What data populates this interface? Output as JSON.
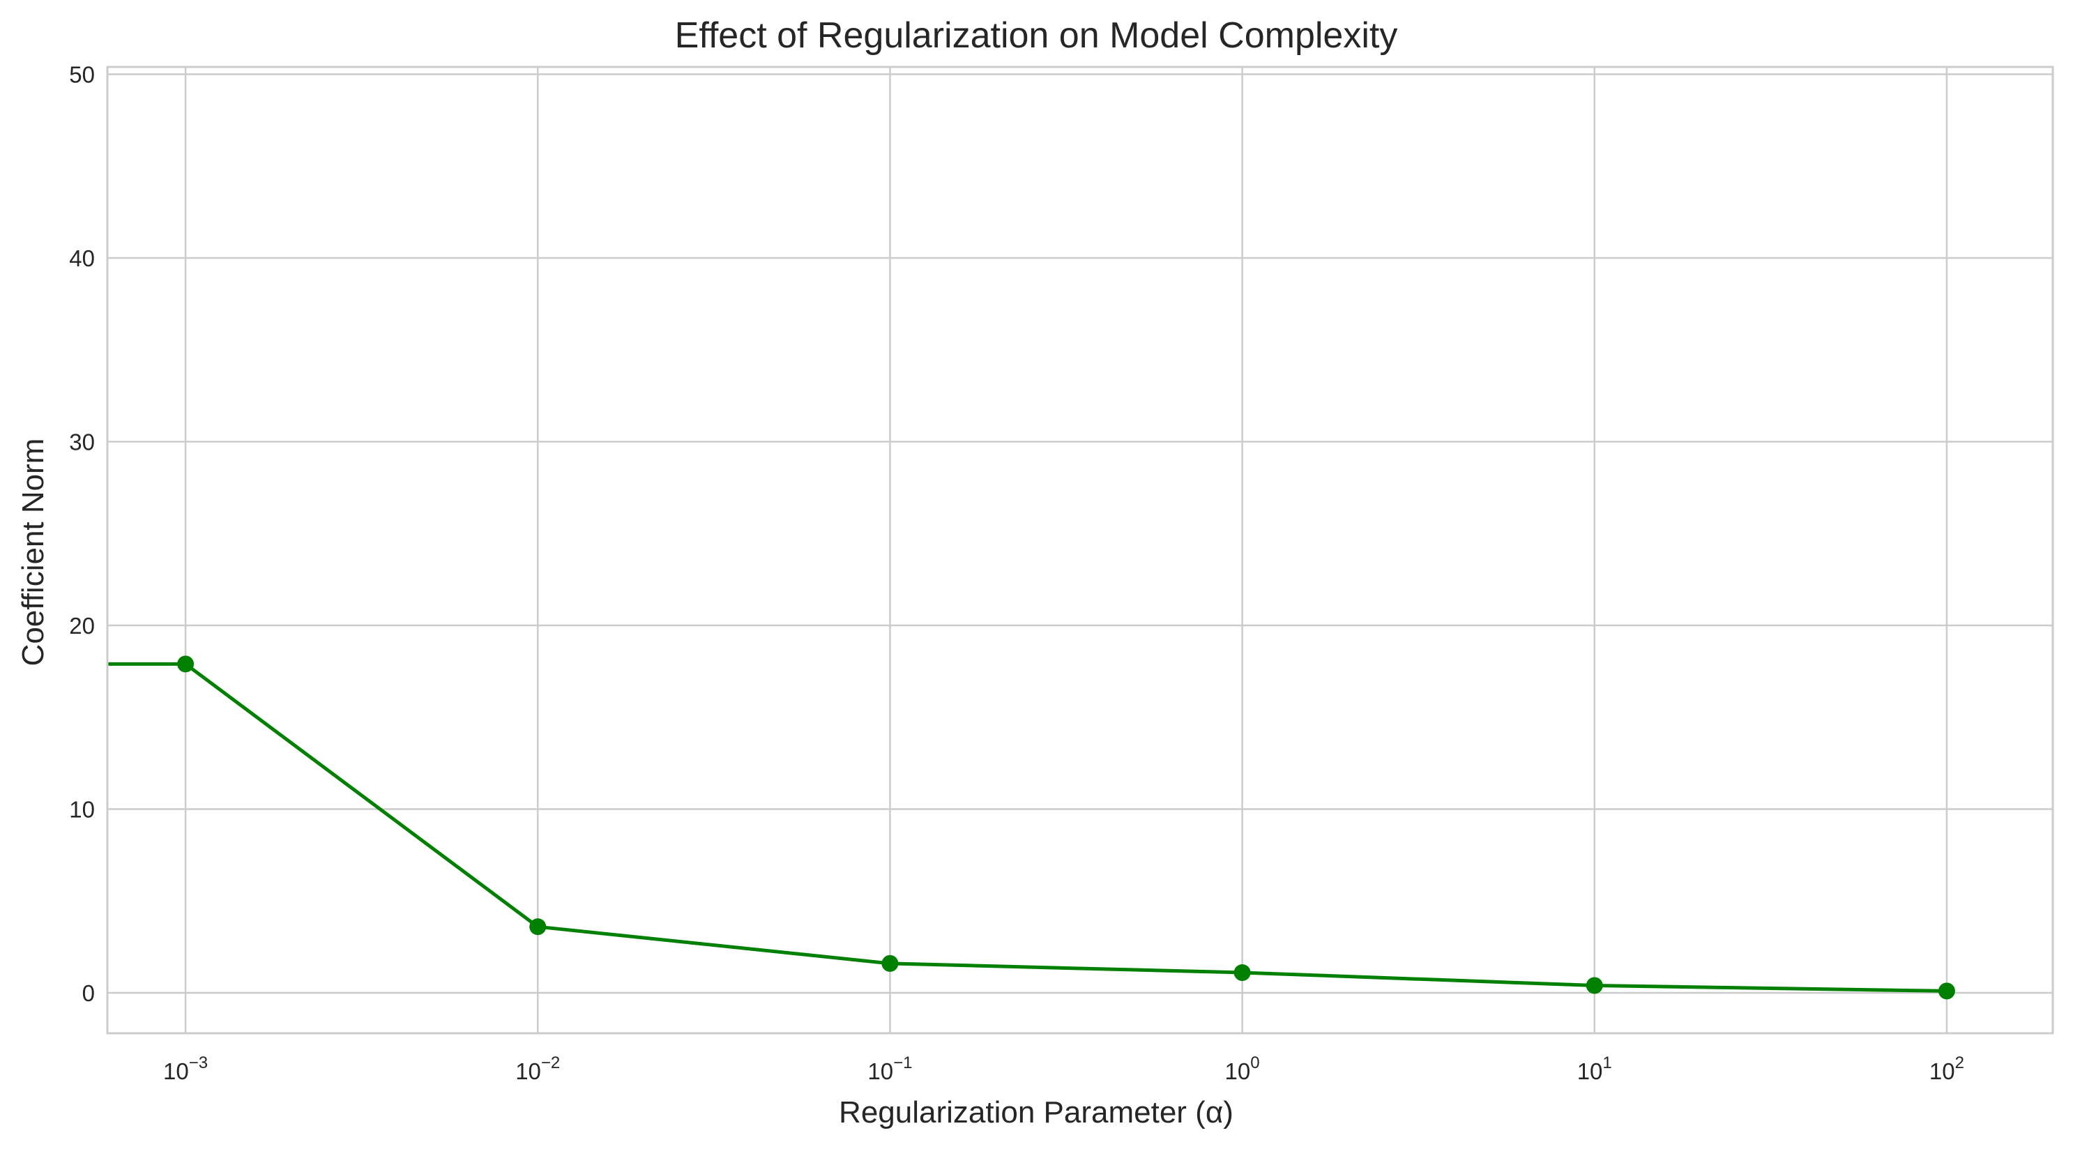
{
  "chart_data": {
    "type": "line",
    "title": "Effect of Regularization on Model Complexity",
    "xlabel": "Regularization Parameter (α)",
    "ylabel": "Coefficient Norm",
    "xscale": "log",
    "xlim": [
      0.0006,
      200
    ],
    "ylim": [
      -2.2,
      50.4
    ],
    "x_ticks": [
      {
        "base": "10",
        "exp": "−3",
        "value": 0.001
      },
      {
        "base": "10",
        "exp": "−2",
        "value": 0.01
      },
      {
        "base": "10",
        "exp": "−1",
        "value": 0.1
      },
      {
        "base": "10",
        "exp": "0",
        "value": 1
      },
      {
        "base": "10",
        "exp": "1",
        "value": 10
      },
      {
        "base": "10",
        "exp": "2",
        "value": 100
      }
    ],
    "y_ticks": [
      "0",
      "10",
      "20",
      "30",
      "40",
      "50"
    ],
    "y_tick_values": [
      0,
      10,
      20,
      30,
      40,
      50
    ],
    "grid": true,
    "series": [
      {
        "color": "#008000",
        "x": [
          0.0001,
          0.001,
          0.01,
          0.1,
          1,
          10,
          100
        ],
        "y": [
          17.9,
          17.9,
          3.6,
          1.6,
          1.1,
          0.4,
          0.1
        ],
        "markers": [
          false,
          true,
          true,
          true,
          true,
          true,
          true
        ]
      }
    ]
  }
}
